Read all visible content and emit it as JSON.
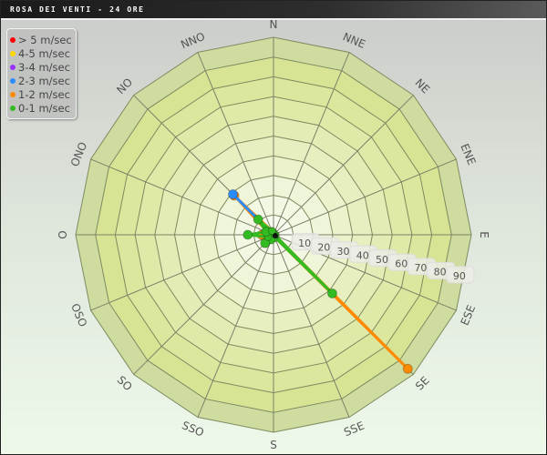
{
  "title": "ROSA DEI VENTI - 24 ORE",
  "chart_data": {
    "type": "radar",
    "title": "ROSA DEI VENTI - 24 ORE",
    "categories": [
      "N",
      "NNE",
      "NE",
      "ENE",
      "E",
      "ESE",
      "SE",
      "SSE",
      "S",
      "SSO",
      "SO",
      "OSO",
      "O",
      "ONO",
      "NO",
      "NNO"
    ],
    "radial_ticks": [
      "10",
      "20",
      "30",
      "40",
      "50",
      "60",
      "70",
      "80",
      "90"
    ],
    "rlim": [
      0,
      100
    ],
    "grid": true,
    "legend": "top-left",
    "series": [
      {
        "name": "> 5 m/sec",
        "color": "#ff0000",
        "values": [
          0,
          0,
          0,
          0,
          0,
          0,
          0,
          0,
          0,
          0,
          0,
          0,
          0,
          0,
          0,
          0
        ]
      },
      {
        "name": "4-5 m/sec",
        "color": "#ffd700",
        "values": [
          0,
          0,
          0,
          0,
          0,
          0,
          0,
          0,
          0,
          0,
          0,
          0,
          0,
          0,
          0,
          0
        ]
      },
      {
        "name": "3-4 m/sec",
        "color": "#9933ff",
        "values": [
          0,
          0,
          0,
          0,
          0,
          0,
          0,
          0,
          0,
          0,
          0,
          0,
          0,
          0,
          0,
          0
        ]
      },
      {
        "name": "2-3 m/sec",
        "color": "#2a8cff",
        "values": [
          0,
          0,
          0,
          0,
          0,
          0,
          1,
          0,
          0,
          0,
          0,
          0,
          1,
          0,
          29,
          0
        ]
      },
      {
        "name": "1-2 m/sec",
        "color": "#ff8a00",
        "values": [
          1,
          0,
          0,
          0,
          0,
          1,
          96,
          1,
          1,
          1,
          2,
          2,
          6,
          3,
          28,
          2
        ]
      },
      {
        "name": "0-1 m/sec",
        "color": "#33bb22",
        "values": [
          1,
          0,
          0,
          0,
          1,
          1,
          42,
          1,
          2,
          3,
          6,
          3,
          13,
          4,
          11,
          2
        ]
      }
    ]
  }
}
